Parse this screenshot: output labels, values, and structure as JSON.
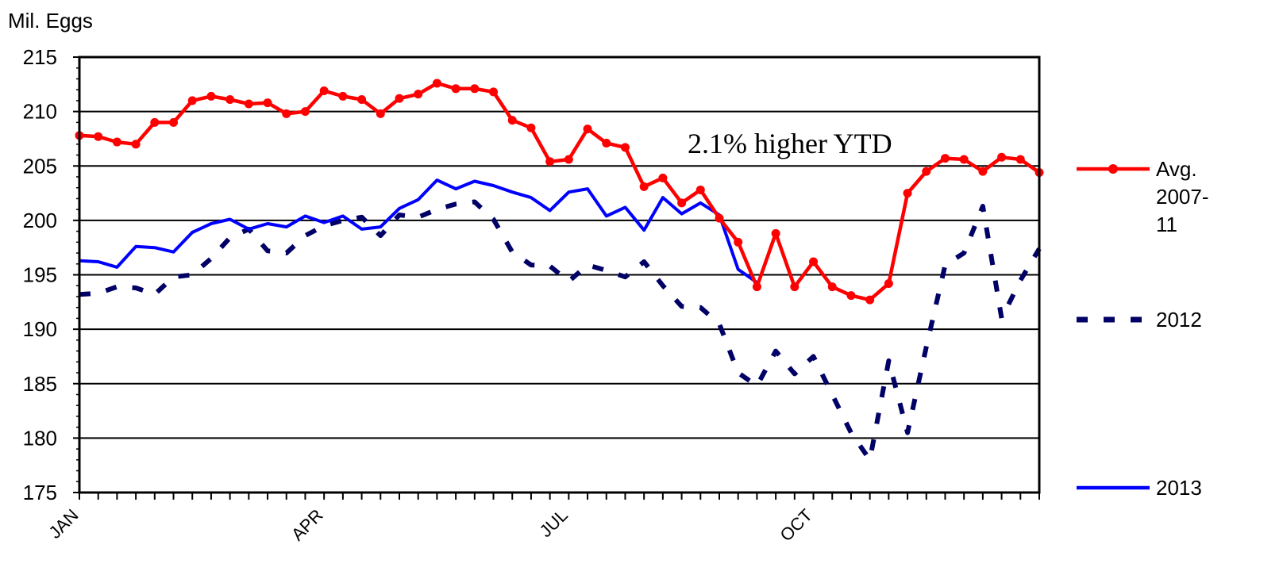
{
  "chart_data": {
    "type": "line",
    "ylabel": "Mil. Eggs",
    "ylim": [
      175,
      215
    ],
    "yticks": [
      175,
      180,
      185,
      190,
      195,
      200,
      205,
      210,
      215
    ],
    "month_labels": [
      {
        "label": "JAN",
        "week": 0
      },
      {
        "label": "APR",
        "week": 13
      },
      {
        "label": "JUL",
        "week": 26
      },
      {
        "label": "OCT",
        "week": 39
      }
    ],
    "grid": "horizontal",
    "legend_placement": "right",
    "annotation": "2.1% higher YTD",
    "series": [
      {
        "name": "Avg. 2007-11",
        "color": "#ff0000",
        "style": "solid-markers",
        "values": [
          207.8,
          207.7,
          207.2,
          207.0,
          209.0,
          209.0,
          211.0,
          211.4,
          211.1,
          210.7,
          210.8,
          209.8,
          210.0,
          211.9,
          211.4,
          211.1,
          209.8,
          211.2,
          211.6,
          212.6,
          212.1,
          212.1,
          211.8,
          209.2,
          208.5,
          205.4,
          205.6,
          208.4,
          207.1,
          206.7,
          203.1,
          203.9,
          201.6,
          202.8,
          200.2,
          198.0,
          193.9,
          198.8,
          193.9,
          196.2,
          193.9,
          193.1,
          192.7,
          194.2,
          202.5,
          204.5,
          205.7,
          205.6,
          204.5,
          205.8,
          205.6,
          204.4
        ]
      },
      {
        "name": "2012",
        "color": "#000066",
        "style": "dashed",
        "values": [
          193.2,
          193.3,
          193.9,
          193.8,
          193.2,
          194.8,
          195.0,
          196.5,
          198.4,
          199.2,
          197.2,
          197.0,
          198.6,
          199.5,
          200.0,
          200.3,
          198.6,
          200.5,
          200.3,
          201.0,
          201.5,
          201.7,
          200.1,
          197.1,
          195.9,
          195.8,
          194.4,
          195.9,
          195.4,
          194.8,
          196.2,
          194.0,
          192.1,
          192.0,
          190.5,
          186.0,
          184.8,
          188.0,
          185.9,
          187.5,
          184.0,
          180.5,
          178.0,
          187.1,
          180.5,
          188.4,
          195.9,
          197.0,
          201.3,
          191.0,
          194.5,
          197.4
        ]
      },
      {
        "name": "2013",
        "color": "#0000ff",
        "style": "solid",
        "values": [
          196.3,
          196.2,
          195.7,
          197.6,
          197.5,
          197.1,
          198.9,
          199.7,
          200.1,
          199.2,
          199.7,
          199.4,
          200.4,
          199.8,
          200.4,
          199.2,
          199.4,
          201.1,
          201.9,
          203.7,
          202.9,
          203.6,
          203.2,
          202.6,
          202.1,
          200.9,
          202.6,
          202.9,
          200.4,
          201.2,
          199.1,
          202.1,
          200.6,
          201.6,
          200.5,
          195.5,
          194.3
        ]
      }
    ]
  }
}
